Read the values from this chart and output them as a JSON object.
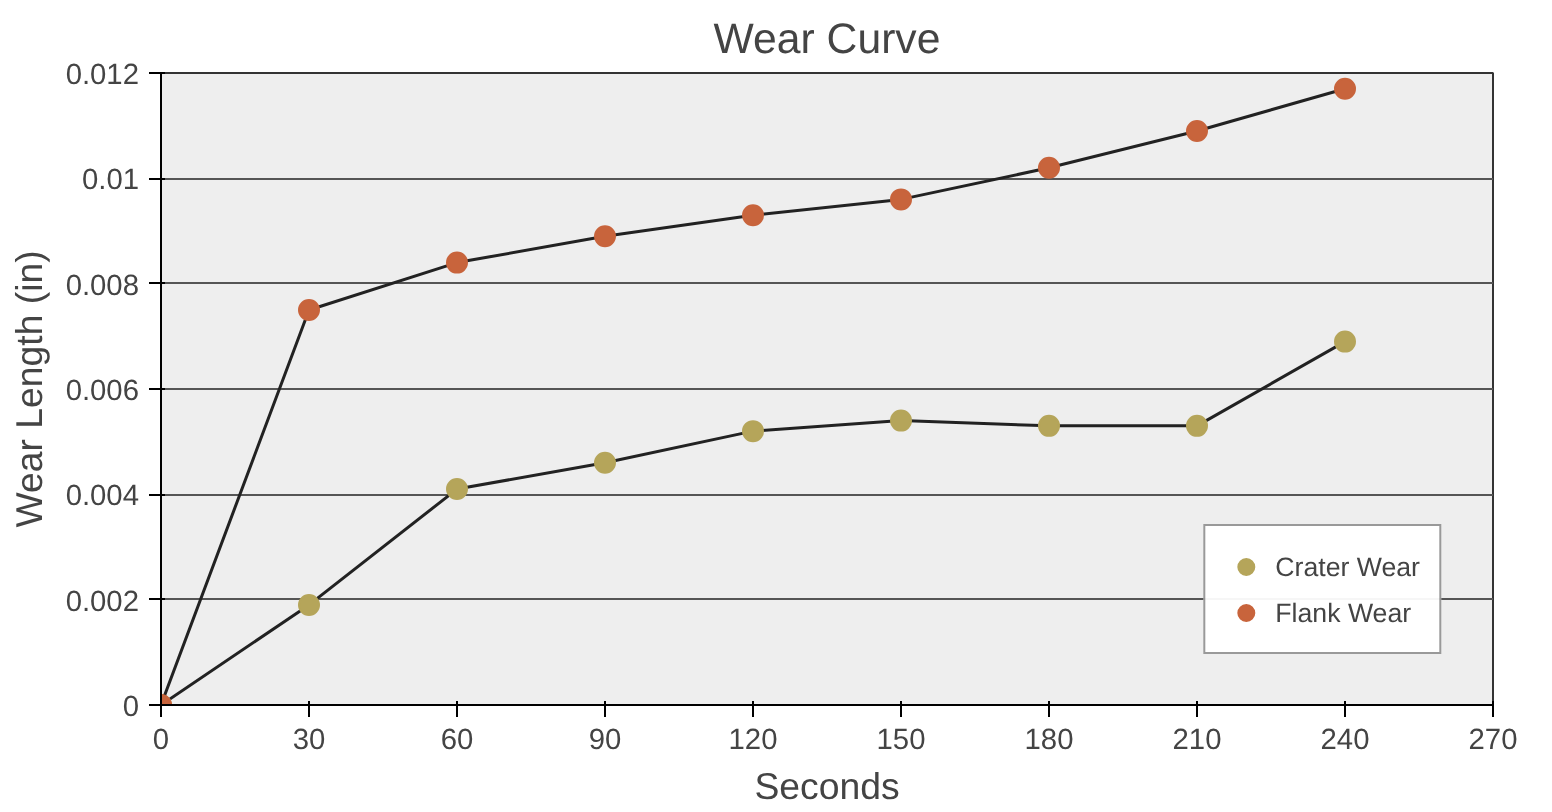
{
  "chart_data": {
    "type": "line",
    "title": "Wear Curve",
    "xlabel": "Seconds",
    "ylabel": "Wear Length (in)",
    "x": [
      0,
      30,
      60,
      90,
      120,
      150,
      180,
      210,
      240
    ],
    "series": [
      {
        "name": "Crater Wear",
        "color": "#b5a55a",
        "values": [
          0,
          0.0019,
          0.0041,
          0.0046,
          0.0052,
          0.0054,
          0.0053,
          0.0053,
          0.0069
        ]
      },
      {
        "name": "Flank Wear",
        "color": "#c8643c",
        "values": [
          0,
          0.0075,
          0.0084,
          0.0089,
          0.0093,
          0.0096,
          0.0102,
          0.0109,
          0.0117
        ]
      }
    ],
    "xlim": [
      0,
      270
    ],
    "xticks": [
      0,
      30,
      60,
      90,
      120,
      150,
      180,
      210,
      240,
      270
    ],
    "ylim": [
      0,
      0.012
    ],
    "yticks": [
      0,
      0.002,
      0.004,
      0.006,
      0.008,
      0.01,
      0.012
    ],
    "grid": "y",
    "legend": "bottom right",
    "marker": "circle",
    "line_style": "solid"
  }
}
